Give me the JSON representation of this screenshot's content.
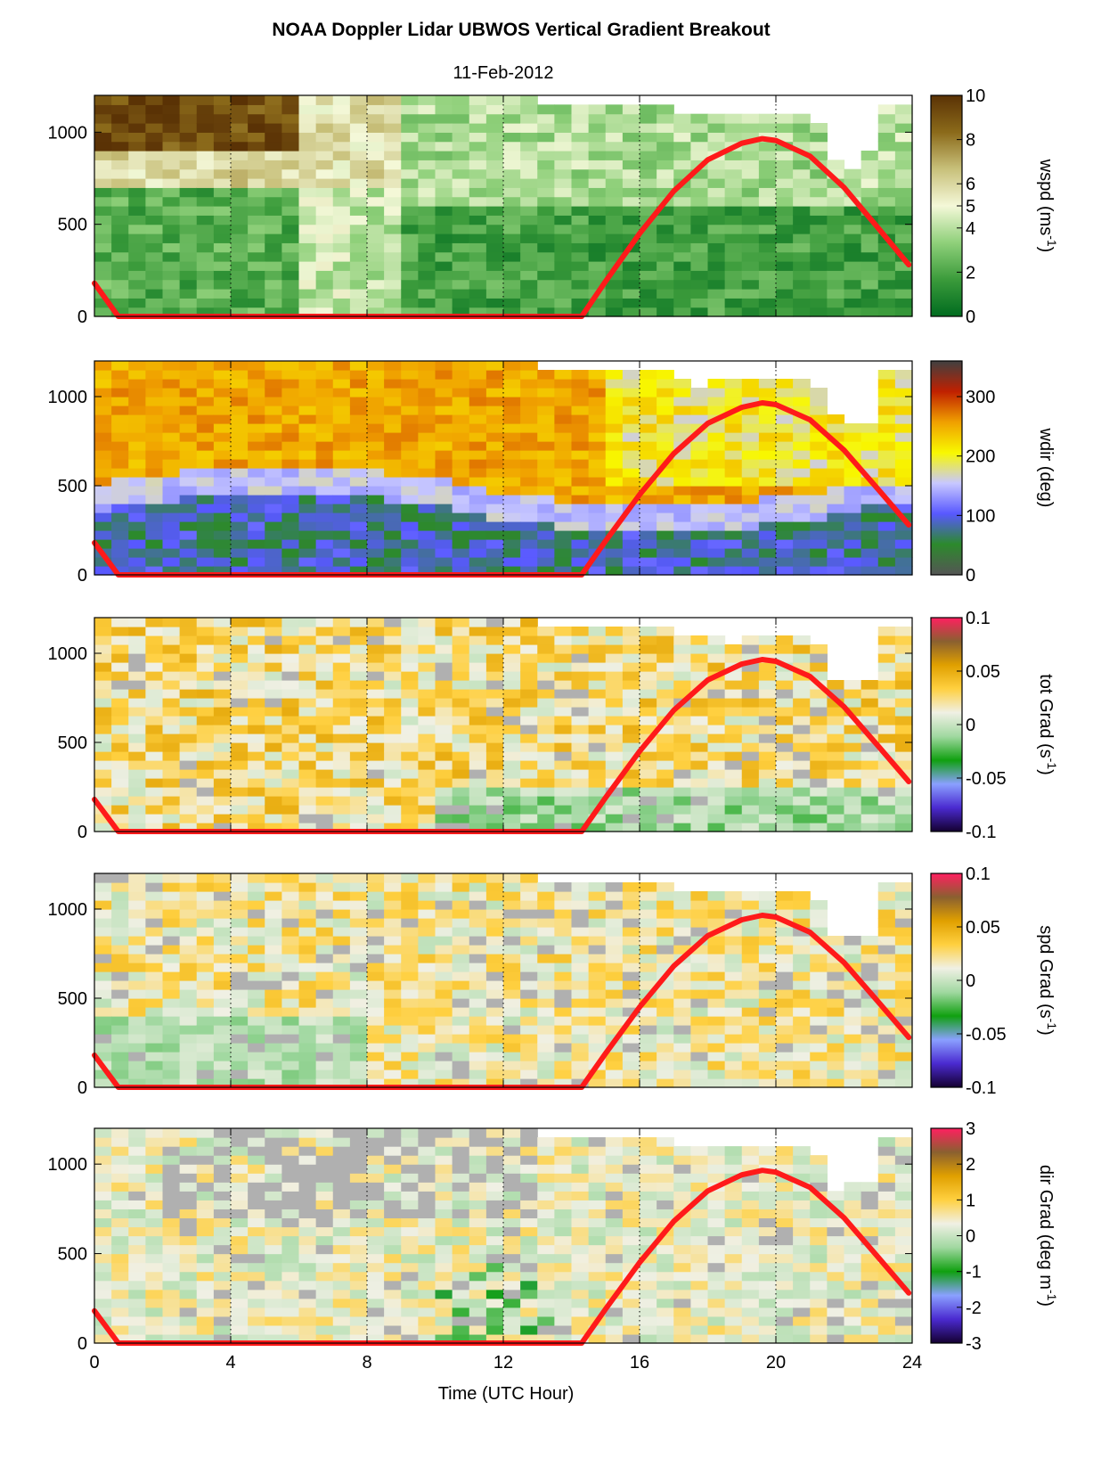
{
  "title": "NOAA Doppler Lidar  UBWOS  Vertical Gradient Breakout",
  "subtitle": "11-Feb-2012",
  "xlabel": "Time (UTC Hour)",
  "xticks": [
    "0",
    "4",
    "8",
    "12",
    "16",
    "20",
    "24"
  ],
  "yticks": [
    "0",
    "500",
    "1000"
  ],
  "colors": {
    "sun_curve": "#ff1a1a",
    "no_data": "#ffffff",
    "below_threshold": "#b0b0b0"
  },
  "chart_data": [
    {
      "type": "heatmap",
      "variable": "wspd",
      "cblabel": "wspd (ms",
      "cblabel_sup": "-1",
      "cblabel_end": ")",
      "cbticks": [
        "0",
        "2",
        "4",
        "5",
        "6",
        "8",
        "10"
      ],
      "clim": [
        0,
        10
      ],
      "xlim": [
        0,
        24
      ],
      "ylim": [
        0,
        1200
      ],
      "grid": "dotted vertical lines at every 4 h",
      "colormap": [
        "#006b1f",
        "#3b9b3b",
        "#8fd07a",
        "#f4f8d8",
        "#c8c07a",
        "#8b6a1a",
        "#5a3205"
      ]
    },
    {
      "type": "heatmap",
      "variable": "wdir",
      "cblabel": "wdir (deg)",
      "cbticks": [
        "0",
        "100",
        "200",
        "300"
      ],
      "clim": [
        0,
        360
      ],
      "xlim": [
        0,
        24
      ],
      "ylim": [
        0,
        1200
      ],
      "grid": "dotted vertical lines at every 4 h",
      "colormap": [
        "#555555",
        "#2c8a2c",
        "#5858ff",
        "#c8c8ff",
        "#f8f800",
        "#f0a000",
        "#c02000",
        "#404040"
      ]
    },
    {
      "type": "heatmap",
      "variable": "tot Grad",
      "cblabel": "tot Grad (s",
      "cblabel_sup": "-1",
      "cblabel_end": ")",
      "cbticks": [
        "-0.1",
        "-0.05",
        "0",
        "0.05",
        "0.1"
      ],
      "clim": [
        -0.1,
        0.1
      ],
      "xlim": [
        0,
        24
      ],
      "ylim": [
        0,
        1200
      ],
      "grid": "dotted vertical lines at every 4 h",
      "colormap": [
        "#140030",
        "#4a2ad0",
        "#8aa0ff",
        "#10a010",
        "#a0d8a0",
        "#f0f0e4",
        "#ffd040",
        "#e0a000",
        "#8a6030",
        "#ff2060"
      ]
    },
    {
      "type": "heatmap",
      "variable": "spd Grad",
      "cblabel": "spd Grad (s",
      "cblabel_sup": "-1",
      "cblabel_end": ")",
      "cbticks": [
        "-0.1",
        "-0.05",
        "0",
        "0.05",
        "0.1"
      ],
      "clim": [
        -0.1,
        0.1
      ],
      "xlim": [
        0,
        24
      ],
      "ylim": [
        0,
        1200
      ],
      "grid": "dotted vertical lines at every 4 h",
      "colormap": [
        "#140030",
        "#4a2ad0",
        "#8aa0ff",
        "#10a010",
        "#a0d8a0",
        "#f0f0e4",
        "#ffd040",
        "#e0a000",
        "#8a6030",
        "#ff2060"
      ]
    },
    {
      "type": "heatmap",
      "variable": "dir Grad",
      "cblabel": "dir Grad (deg m",
      "cblabel_sup": "-1",
      "cblabel_end": ")",
      "cbticks": [
        "-3",
        "-2",
        "-1",
        "0",
        "1",
        "2",
        "3"
      ],
      "clim": [
        -3,
        3
      ],
      "xlim": [
        0,
        24
      ],
      "ylim": [
        0,
        1200
      ],
      "grid": "dotted vertical lines at every 4 h",
      "colormap": [
        "#140030",
        "#4a2ad0",
        "#8aa0ff",
        "#10a010",
        "#a0d8a0",
        "#f0f0e4",
        "#ffd040",
        "#e0a000",
        "#8a6030",
        "#ff2060"
      ]
    }
  ],
  "overlay_curve": {
    "description_visible": "red line on every panel",
    "x": [
      0,
      0.7,
      14.3,
      15,
      16,
      17,
      18,
      19,
      19.6,
      20,
      21,
      22,
      23,
      23.9
    ],
    "y": [
      180,
      0,
      0,
      190,
      450,
      680,
      850,
      940,
      965,
      955,
      870,
      700,
      480,
      280
    ]
  }
}
